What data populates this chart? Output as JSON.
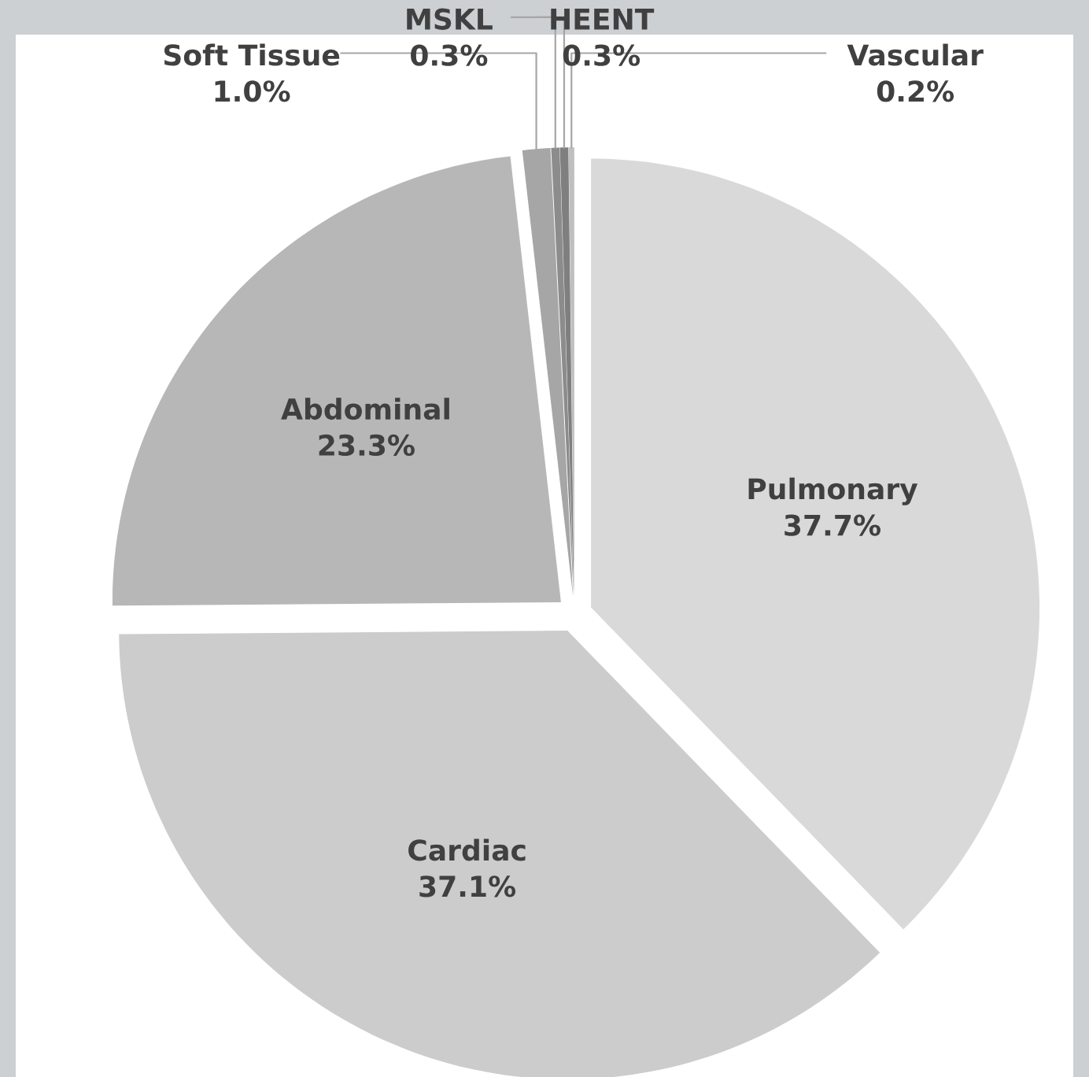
{
  "chart_data": {
    "type": "pie",
    "categories": [
      "Pulmonary",
      "Cardiac",
      "Abdominal",
      "Soft Tissue",
      "MSKL",
      "HEENT",
      "Vascular"
    ],
    "values": [
      37.7,
      37.1,
      23.3,
      1.0,
      0.3,
      0.3,
      0.2
    ],
    "value_labels": [
      "37.7%",
      "37.1%",
      "23.3%",
      "1.0%",
      "0.3%",
      "0.3%",
      "0.2%"
    ],
    "colors": [
      "#d9d9d9",
      "#cccccc",
      "#b7b7b7",
      "#a6a6a6",
      "#8c8c8c",
      "#7f7f7f",
      "#bfbfbf"
    ],
    "legend": false
  }
}
